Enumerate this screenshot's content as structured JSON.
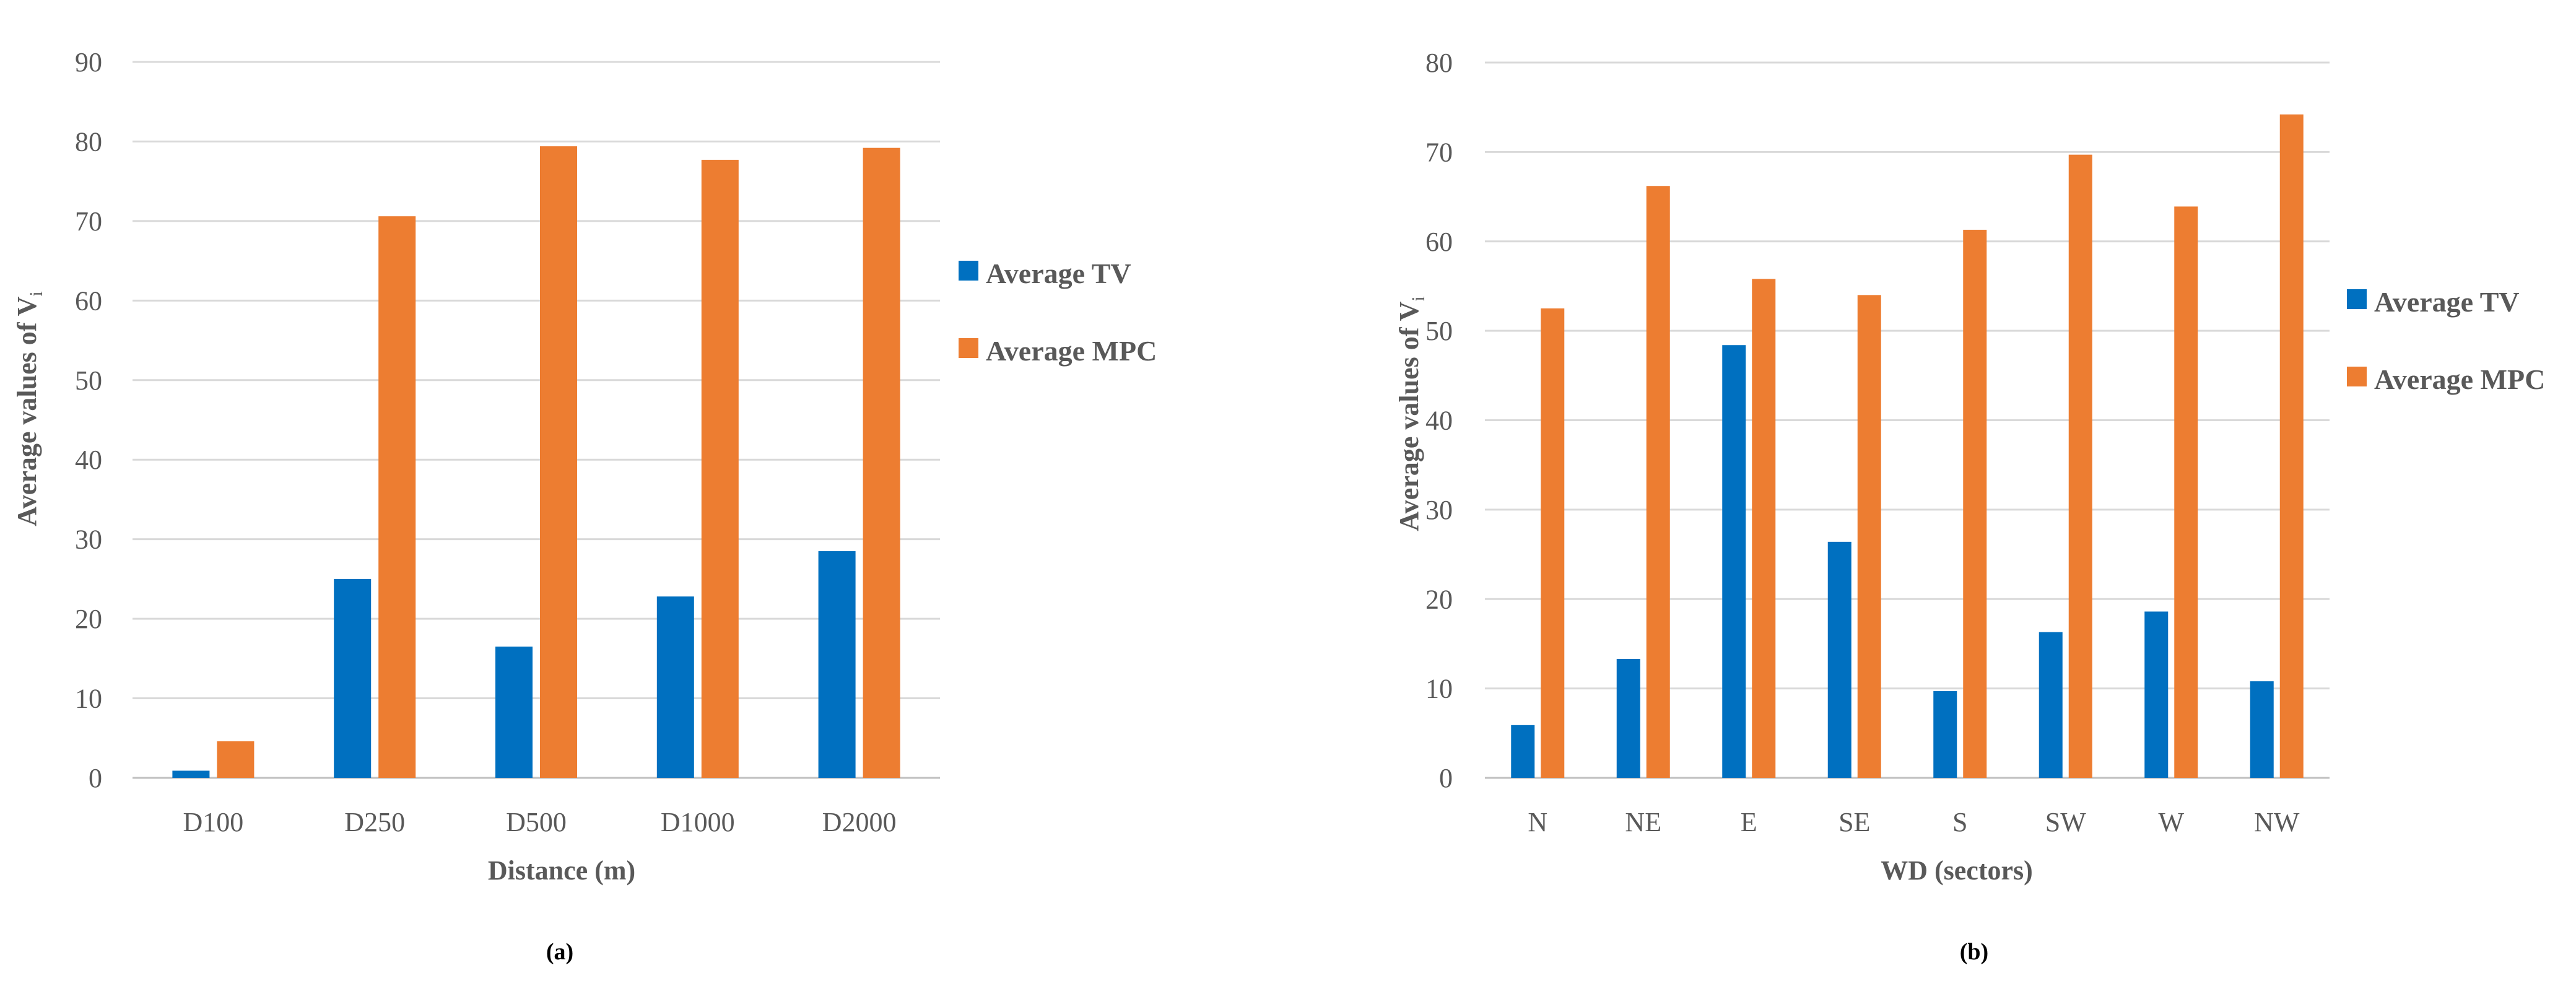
{
  "chart_data": [
    {
      "type": "bar",
      "caption": "(a)",
      "categories": [
        "D100",
        "D250",
        "D500",
        "D1000",
        "D2000"
      ],
      "series": [
        {
          "name": "Average TV",
          "color": "#0070c0",
          "values": [
            0.9,
            25.0,
            16.5,
            22.8,
            28.5
          ]
        },
        {
          "name": "Average MPC",
          "color": "#ed7d31",
          "values": [
            4.6,
            70.6,
            79.4,
            77.7,
            79.2
          ]
        }
      ],
      "xlabel": "Distance (m)",
      "ylabel_main": "Average values of V",
      "ylabel_sub": "i",
      "ylim": [
        0,
        90
      ],
      "yticks": [
        0,
        10,
        20,
        30,
        40,
        50,
        60,
        70,
        80,
        90
      ],
      "grid": true,
      "legend": "right"
    },
    {
      "type": "bar",
      "caption": "(b)",
      "categories": [
        "N",
        "NE",
        "E",
        "SE",
        "S",
        "SW",
        "W",
        "NW"
      ],
      "series": [
        {
          "name": "Average TV",
          "color": "#0070c0",
          "values": [
            5.9,
            13.3,
            48.4,
            26.4,
            9.7,
            16.3,
            18.6,
            10.8
          ]
        },
        {
          "name": "Average MPC",
          "color": "#ed7d31",
          "values": [
            52.5,
            66.2,
            55.8,
            54.0,
            61.3,
            69.7,
            63.9,
            74.2
          ]
        }
      ],
      "xlabel": "WD (sectors)",
      "ylabel_main": "Average values of V",
      "ylabel_sub": "i",
      "ylim": [
        0,
        80
      ],
      "yticks": [
        0,
        10,
        20,
        30,
        40,
        50,
        60,
        70,
        80
      ],
      "grid": true,
      "legend": "right"
    }
  ]
}
